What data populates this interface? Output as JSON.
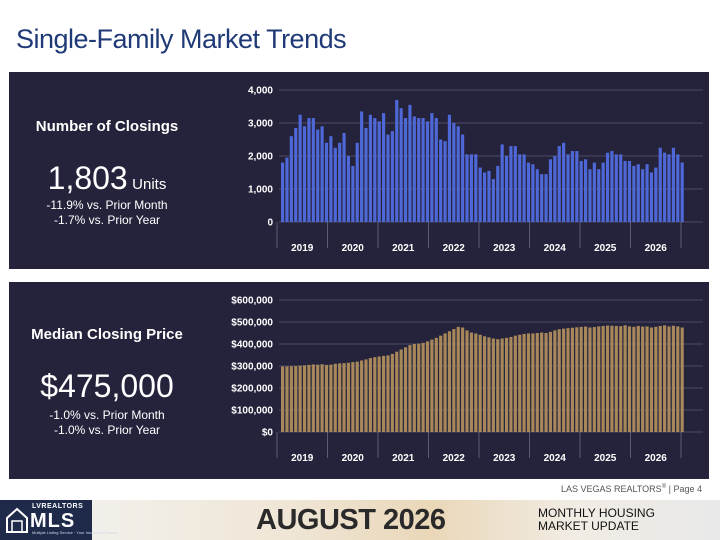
{
  "page": {
    "title": "Single-Family Market Trends",
    "source": "LAS VEGAS REALTORS",
    "source_mark": "®",
    "page_label": " | Page 4"
  },
  "closings": {
    "label": "Number of Closings",
    "value": "1,803",
    "unit": "Units",
    "vs_month": "-11.9% vs. Prior Month",
    "vs_year": "-1.7% vs. Prior Year"
  },
  "price": {
    "label": "Median Closing Price",
    "value": "$475,000",
    "vs_month": "-1.0% vs. Prior Month",
    "vs_year": "-1.0% vs. Prior Year"
  },
  "footer": {
    "logo_top": "LVREALTORS",
    "logo_main": "MLS",
    "logo_sub": "Multiple Listing Service · Your Innovative Source",
    "month": "AUGUST 2026",
    "update_line1": "MONTHLY HOUSING",
    "update_line2": "MARKET UPDATE"
  },
  "colors": {
    "title": "#1f3a77",
    "panel": "#24233b",
    "closings_bar": "#4f68d8",
    "price_bar": "#a8885a"
  },
  "chart_data": [
    {
      "type": "bar",
      "series": [
        {
          "values": [
            1800,
            1950,
            2600,
            2850,
            3250,
            2900,
            3150,
            3150,
            2800,
            2900,
            2400,
            2600,
            2250,
            2400,
            2700,
            2000,
            1700,
            2400,
            3350,
            2850,
            3250,
            3150,
            3050,
            3300,
            2650,
            2750,
            3700,
            3450,
            3150,
            3550,
            3200,
            3150,
            3150,
            3050,
            3300,
            3150,
            2500,
            2450,
            3250,
            3000,
            2900,
            2650,
            2050,
            2050,
            2050,
            1650,
            1500,
            1550,
            1300,
            1700,
            2350,
            2000,
            2300,
            2300,
            2050,
            2050,
            1800,
            1750,
            1600,
            1450,
            1450,
            1900,
            2000,
            2300,
            2400,
            2050,
            2150,
            2150,
            1850,
            1900,
            1600,
            1800,
            1600,
            1800,
            2100,
            2150,
            2050,
            2050,
            1850,
            1850,
            1700,
            1750,
            1600,
            1750,
            1500,
            1650,
            2250,
            2100,
            2050,
            2250,
            2050,
            1803
          ]
        }
      ],
      "x_tick_labels": [
        "2019",
        "2020",
        "2021",
        "2022",
        "2023",
        "2024",
        "2025",
        "2026"
      ],
      "y_tick_labels": [
        "4,000",
        "3,000",
        "2,000",
        "1,000",
        "0"
      ],
      "ylim": [
        0,
        4000
      ],
      "grid": true
    },
    {
      "type": "bar",
      "series": [
        {
          "values": [
            298000,
            298000,
            299000,
            300000,
            302000,
            303000,
            305000,
            307000,
            306000,
            308000,
            305000,
            306000,
            310000,
            312000,
            313000,
            315000,
            318000,
            320000,
            325000,
            330000,
            336000,
            340000,
            343000,
            346000,
            348000,
            355000,
            365000,
            375000,
            385000,
            395000,
            400000,
            402000,
            405000,
            412000,
            420000,
            428000,
            438000,
            448000,
            458000,
            468000,
            478000,
            475000,
            462000,
            452000,
            448000,
            442000,
            435000,
            430000,
            425000,
            422000,
            425000,
            428000,
            432000,
            438000,
            442000,
            446000,
            448000,
            448000,
            450000,
            452000,
            450000,
            455000,
            462000,
            467000,
            470000,
            472000,
            474000,
            476000,
            478000,
            479000,
            475000,
            477000,
            480000,
            482000,
            484000,
            483000,
            482000,
            481000,
            485000,
            480000,
            478000,
            482000,
            479000,
            480000,
            475000,
            478000,
            482000,
            485000,
            480000,
            483000,
            480000,
            475000
          ]
        }
      ],
      "x_tick_labels": [
        "2019",
        "2020",
        "2021",
        "2022",
        "2023",
        "2024",
        "2025",
        "2026"
      ],
      "y_tick_labels": [
        "$600,000",
        "$500,000",
        "$400,000",
        "$300,000",
        "$200,000",
        "$100,000",
        "$0"
      ],
      "ylim": [
        0,
        600000
      ],
      "grid": true
    }
  ]
}
